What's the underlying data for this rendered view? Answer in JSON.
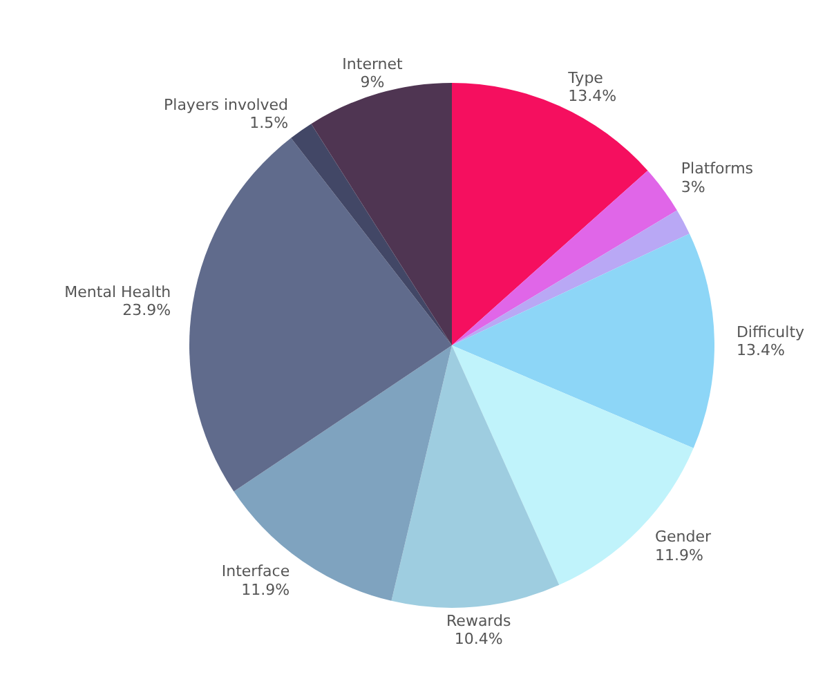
{
  "chart_data": {
    "type": "pie",
    "categories": [
      "Type",
      "Platforms",
      null,
      "Difficulty",
      "Gender",
      "Rewards",
      "Interface",
      "Mental Health",
      "Players involved",
      "Internet"
    ],
    "values": [
      13.4,
      3,
      1.6,
      13.4,
      11.9,
      10.4,
      11.9,
      23.9,
      1.5,
      9
    ],
    "value_labels": [
      "13.4%",
      "3%",
      null,
      "13.4%",
      "11.9%",
      "10.4%",
      "11.9%",
      "23.9%",
      "1.5%",
      "9%"
    ],
    "colors": [
      "#f50f5f",
      "#e066e8",
      "#b9a8f5",
      "#8dd6f7",
      "#c0f3fb",
      "#9ecde0",
      "#7fa3bf",
      "#606b8c",
      "#424766",
      "#4f3552"
    ]
  }
}
